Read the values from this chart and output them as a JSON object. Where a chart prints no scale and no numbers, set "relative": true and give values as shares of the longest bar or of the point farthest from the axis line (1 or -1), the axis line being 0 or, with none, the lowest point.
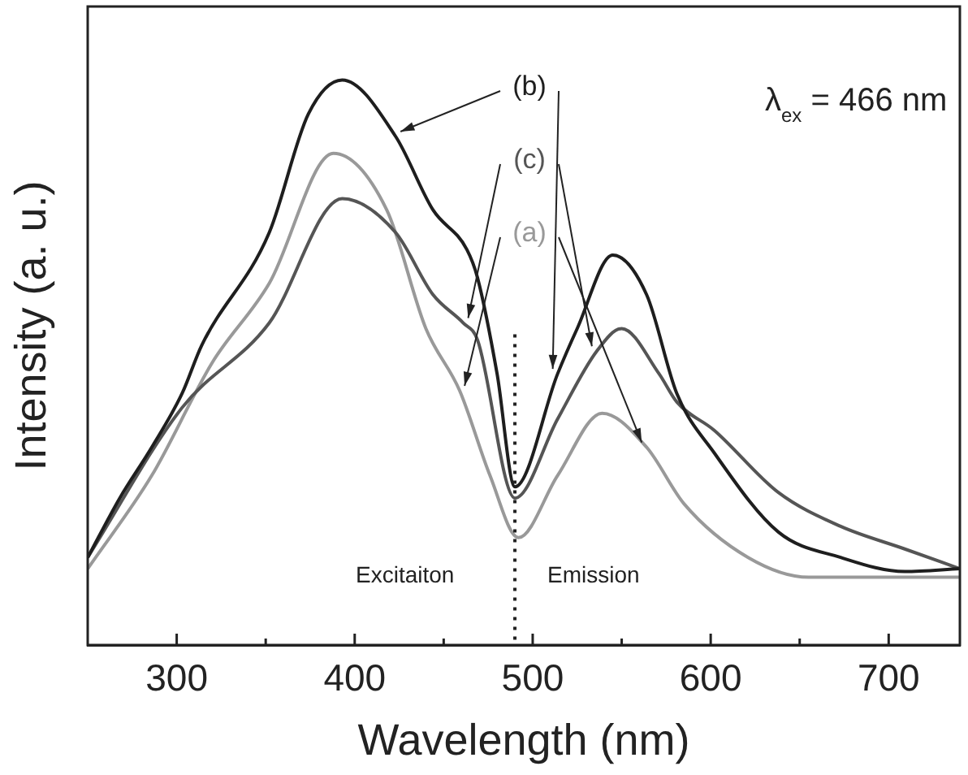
{
  "chart_data": {
    "type": "line",
    "xlabel": "Wavelength (nm)",
    "ylabel": "Intensity (a. u.)",
    "relative": true,
    "xlim": [
      250,
      740
    ],
    "xticks": [
      300,
      {
        "value": 350,
        "label": null
      },
      400,
      {
        "value": 450,
        "label": null
      },
      500,
      {
        "value": 550,
        "label": null
      },
      600,
      {
        "value": 650,
        "label": null
      },
      700
    ],
    "grid": false,
    "legend": false,
    "marker": "none",
    "line_style": "solid",
    "series": [
      {
        "name": "(b)",
        "color": "#1e1e1e",
        "x": [
          250,
          268,
          286,
          303,
          314,
          352,
          374,
          393,
          423,
          444,
          463,
          469,
          480,
          490,
          514,
          525,
          545,
          564,
          581,
          602,
          638,
          673,
          709,
          740
        ],
        "values": [
          0.155,
          0.26,
          0.35,
          0.445,
          0.53,
          0.73,
          0.94,
          1.0,
          0.9,
          0.77,
          0.7,
          0.65,
          0.48,
          0.28,
          0.48,
          0.56,
          0.69,
          0.62,
          0.445,
          0.34,
          0.2,
          0.155,
          0.13,
          0.135
        ]
      },
      {
        "name": "(c)",
        "color": "#555555",
        "x": [
          250,
          303,
          352,
          393,
          423,
          444,
          461,
          469,
          490,
          514,
          536,
          550,
          571,
          581,
          602,
          638,
          673,
          709,
          740
        ],
        "values": [
          0.155,
          0.42,
          0.57,
          0.79,
          0.73,
          0.62,
          0.57,
          0.54,
          0.26,
          0.4,
          0.52,
          0.56,
          0.48,
          0.43,
          0.38,
          0.27,
          0.21,
          0.17,
          0.135
        ]
      },
      {
        "name": "(a)",
        "color": "#999999",
        "x": [
          250,
          286,
          320,
          352,
          388,
          418,
          440,
          459,
          476,
          492,
          514,
          539,
          564,
          585,
          621,
          655,
          740
        ],
        "values": [
          0.135,
          0.3,
          0.5,
          0.64,
          0.87,
          0.77,
          0.56,
          0.45,
          0.3,
          0.19,
          0.3,
          0.41,
          0.35,
          0.25,
          0.155,
          0.12,
          0.12
        ]
      }
    ],
    "ref_lines": [
      {
        "axis": "x",
        "value": 490,
        "line_style": "dotted",
        "color": "#222222"
      }
    ],
    "annotations": [
      "λ$_{ex}$ = 466 nm",
      "Excitaiton",
      "Emission"
    ]
  }
}
